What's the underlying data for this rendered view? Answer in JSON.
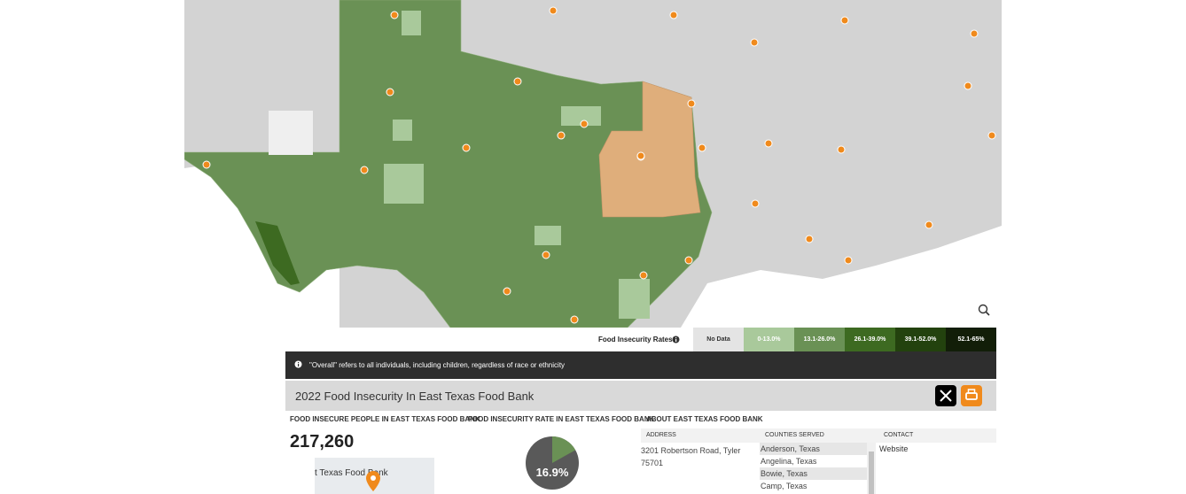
{
  "legend": {
    "title": "Food Insecurity Rates",
    "items": [
      {
        "label": "No Data",
        "color": "#e4e4e4",
        "text_color": "#333333"
      },
      {
        "label": "0-13.0%",
        "color": "#a9c99b",
        "text_color": "#ffffff"
      },
      {
        "label": "13.1-26.0%",
        "color": "#6a9155",
        "text_color": "#ffffff"
      },
      {
        "label": "26.1-39.0%",
        "color": "#3d6a21",
        "text_color": "#ffffff"
      },
      {
        "label": "39.1-52.0%",
        "color": "#23420e",
        "text_color": "#ffffff"
      },
      {
        "label": "52.1-65%",
        "color": "#121e08",
        "text_color": "#ffffff"
      }
    ]
  },
  "notice": "\"Overall\" refers to all individuals, including children, regardless of race or ethnicity",
  "title": "2022 Food Insecurity In East Texas Food Bank",
  "people": {
    "label": "FOOD INSECURE PEOPLE IN EAST TEXAS FOOD BANK",
    "value": "217,260",
    "map_label": "t Texas Food Bank"
  },
  "rate": {
    "label": "FOOD INSECURITY RATE IN EAST TEXAS FOOD BANK",
    "value": 16.9,
    "value_label": "16.9%",
    "color": "#6a9155",
    "rest_color": "#595959"
  },
  "about": {
    "title": "ABOUT EAST TEXAS FOOD BANK",
    "address": {
      "label": "ADDRESS",
      "text": "3201 Robertson Road, Tyler 75701"
    },
    "counties": {
      "label": "COUNTIES SERVED",
      "items": [
        "Anderson, Texas",
        "Angelina, Texas",
        "Bowie, Texas",
        "Camp, Texas"
      ]
    },
    "contact": {
      "label": "CONTACT",
      "text": "Website"
    }
  }
}
